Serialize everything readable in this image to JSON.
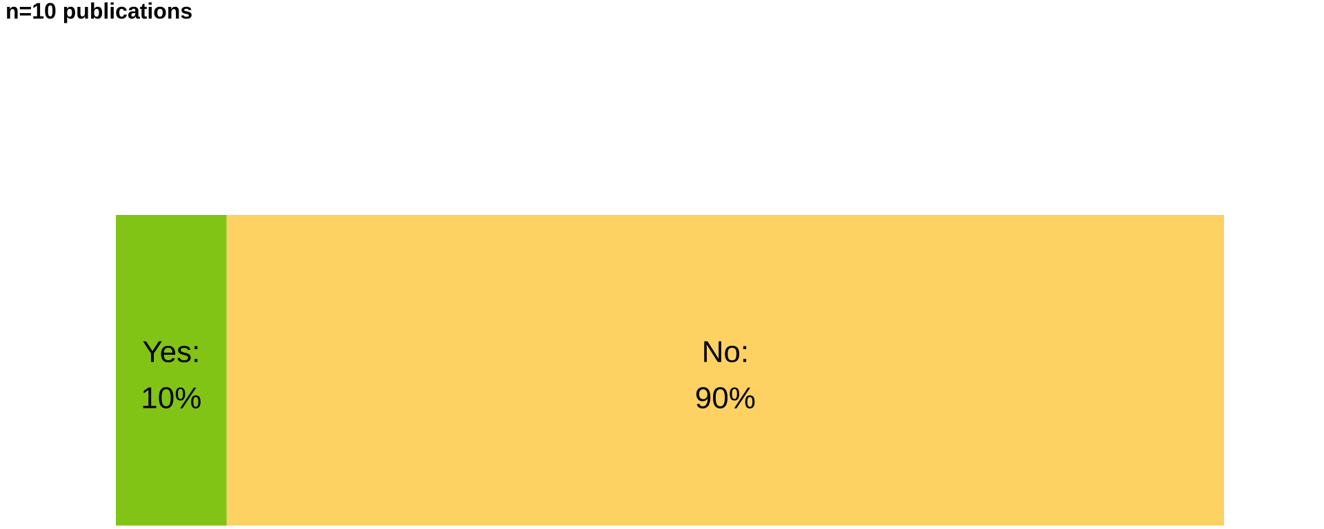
{
  "chart_data": {
    "type": "bar",
    "stacked": true,
    "orientation": "horizontal",
    "title": "n=10 publications",
    "total": 100,
    "segments": [
      {
        "name": "Yes",
        "label": "Yes:",
        "value": 10,
        "value_text": "10%",
        "color": "#82c416"
      },
      {
        "name": "No",
        "label": "No:",
        "value": 90,
        "value_text": "90%",
        "color": "#fdd162"
      }
    ],
    "axes_visible": false,
    "grid": false,
    "legend": "none"
  }
}
